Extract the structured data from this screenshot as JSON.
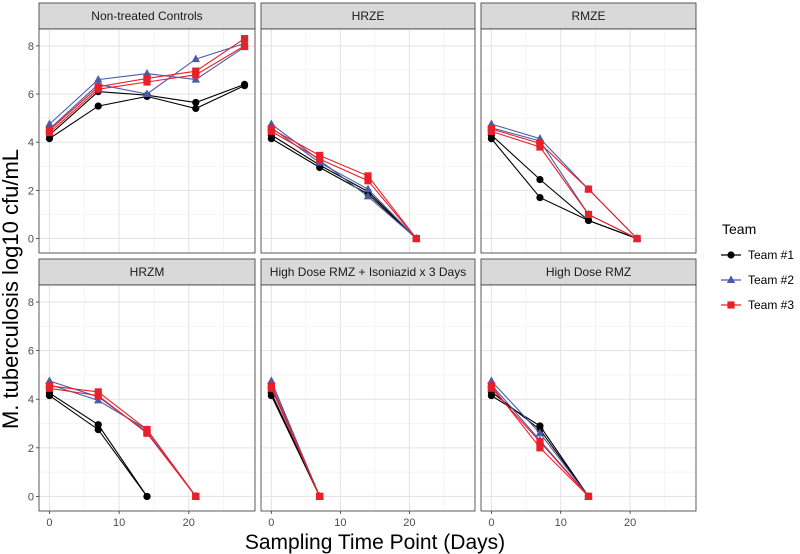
{
  "chart_data": {
    "type": "line",
    "xlabel": "Sampling Time Point (Days)",
    "ylabel": "M. tuberculosis log10 cfu/mL",
    "xlim": [
      -1.5,
      29.5
    ],
    "ylim": [
      -0.6,
      8.7
    ],
    "xticks": [
      0,
      10,
      20
    ],
    "yticks": [
      0,
      2,
      4,
      6,
      8
    ],
    "grid": true,
    "legend": {
      "title": "Team",
      "position": "right",
      "entries": [
        "Team #1",
        "Team #2",
        "Team #3"
      ]
    },
    "team_colors": {
      "Team #1": "#000000",
      "Team #2": "#4a5ba8",
      "Team #3": "#e8202a"
    },
    "team_markers": {
      "Team #1": "circle",
      "Team #2": "triangle",
      "Team #3": "square"
    },
    "panels": [
      {
        "title": "Non-treated Controls",
        "series": [
          {
            "team": "Team #1",
            "x": [
              0,
              7,
              14,
              21,
              28
            ],
            "y": [
              4.15,
              5.5,
              5.9,
              5.4,
              6.35
            ]
          },
          {
            "team": "Team #1",
            "x": [
              0,
              7,
              14,
              21,
              28
            ],
            "y": [
              4.3,
              6.1,
              5.95,
              5.65,
              6.4
            ]
          },
          {
            "team": "Team #2",
            "x": [
              0,
              7,
              14,
              21,
              28
            ],
            "y": [
              4.75,
              6.6,
              6.85,
              6.6,
              7.95
            ]
          },
          {
            "team": "Team #2",
            "x": [
              0,
              7,
              14,
              21,
              28
            ],
            "y": [
              4.55,
              6.4,
              6.0,
              7.45,
              8.1
            ]
          },
          {
            "team": "Team #3",
            "x": [
              0,
              7,
              14,
              21,
              28
            ],
            "y": [
              4.5,
              6.3,
              6.65,
              6.95,
              8.3
            ]
          },
          {
            "team": "Team #3",
            "x": [
              0,
              7,
              14,
              21,
              28
            ],
            "y": [
              4.4,
              6.2,
              6.5,
              6.8,
              8.0
            ]
          }
        ]
      },
      {
        "title": "HRZE",
        "series": [
          {
            "team": "Team #1",
            "x": [
              0,
              7,
              14,
              21
            ],
            "y": [
              4.15,
              2.95,
              1.85,
              0.0
            ]
          },
          {
            "team": "Team #1",
            "x": [
              0,
              7,
              14,
              21
            ],
            "y": [
              4.3,
              3.05,
              1.95,
              0.0
            ]
          },
          {
            "team": "Team #2",
            "x": [
              0,
              7,
              14,
              21
            ],
            "y": [
              4.75,
              3.25,
              1.75,
              0.0
            ]
          },
          {
            "team": "Team #2",
            "x": [
              0,
              7,
              14,
              21
            ],
            "y": [
              4.6,
              3.15,
              2.05,
              0.0
            ]
          },
          {
            "team": "Team #3",
            "x": [
              0,
              7,
              14,
              21
            ],
            "y": [
              4.55,
              3.45,
              2.6,
              0.0
            ]
          },
          {
            "team": "Team #3",
            "x": [
              0,
              7,
              14,
              21
            ],
            "y": [
              4.45,
              3.3,
              2.4,
              0.0
            ]
          }
        ]
      },
      {
        "title": "RMZE",
        "series": [
          {
            "team": "Team #1",
            "x": [
              0,
              7,
              14,
              21
            ],
            "y": [
              4.15,
              1.7,
              0.75,
              0.0
            ]
          },
          {
            "team": "Team #1",
            "x": [
              0,
              7,
              14,
              21
            ],
            "y": [
              4.3,
              2.45,
              0.75,
              0.0
            ]
          },
          {
            "team": "Team #2",
            "x": [
              0,
              7,
              14,
              21
            ],
            "y": [
              4.75,
              4.15,
              2.05,
              0.0
            ]
          },
          {
            "team": "Team #2",
            "x": [
              0,
              7,
              14,
              21
            ],
            "y": [
              4.6,
              4.05,
              1.0,
              0.0
            ]
          },
          {
            "team": "Team #3",
            "x": [
              0,
              7,
              14,
              21
            ],
            "y": [
              4.55,
              3.95,
              2.05,
              0.0
            ]
          },
          {
            "team": "Team #3",
            "x": [
              0,
              7,
              14,
              21
            ],
            "y": [
              4.45,
              3.8,
              1.0,
              0.0
            ]
          }
        ]
      },
      {
        "title": "HRZM",
        "series": [
          {
            "team": "Team #1",
            "x": [
              0,
              7,
              14
            ],
            "y": [
              4.15,
              2.75,
              0.0
            ]
          },
          {
            "team": "Team #1",
            "x": [
              0,
              7,
              14
            ],
            "y": [
              4.25,
              2.95,
              0.0
            ]
          },
          {
            "team": "Team #2",
            "x": [
              0,
              7,
              14,
              21
            ],
            "y": [
              4.75,
              4.1,
              2.65,
              0.0
            ]
          },
          {
            "team": "Team #2",
            "x": [
              0,
              7,
              14,
              21
            ],
            "y": [
              4.6,
              3.95,
              2.75,
              0.0
            ]
          },
          {
            "team": "Team #3",
            "x": [
              0,
              7,
              14,
              21
            ],
            "y": [
              4.55,
              4.3,
              2.75,
              0.0
            ]
          },
          {
            "team": "Team #3",
            "x": [
              0,
              7,
              14,
              21
            ],
            "y": [
              4.45,
              4.15,
              2.6,
              0.0
            ]
          }
        ]
      },
      {
        "title": "High Dose RMZ + Isoniazid x 3 Days",
        "series": [
          {
            "team": "Team #1",
            "x": [
              0,
              7
            ],
            "y": [
              4.15,
              0.0
            ]
          },
          {
            "team": "Team #1",
            "x": [
              0,
              7
            ],
            "y": [
              4.25,
              0.0
            ]
          },
          {
            "team": "Team #2",
            "x": [
              0,
              7
            ],
            "y": [
              4.75,
              0.0
            ]
          },
          {
            "team": "Team #2",
            "x": [
              0,
              7
            ],
            "y": [
              4.6,
              0.0
            ]
          },
          {
            "team": "Team #3",
            "x": [
              0,
              7
            ],
            "y": [
              4.55,
              0.0
            ]
          },
          {
            "team": "Team #3",
            "x": [
              0,
              7
            ],
            "y": [
              4.45,
              0.0
            ]
          }
        ]
      },
      {
        "title": "High Dose RMZ",
        "series": [
          {
            "team": "Team #1",
            "x": [
              0,
              7,
              14
            ],
            "y": [
              4.15,
              2.9,
              0.0
            ]
          },
          {
            "team": "Team #1",
            "x": [
              0,
              7,
              14
            ],
            "y": [
              4.3,
              2.75,
              0.0
            ]
          },
          {
            "team": "Team #2",
            "x": [
              0,
              7,
              14
            ],
            "y": [
              4.75,
              2.6,
              0.0
            ]
          },
          {
            "team": "Team #2",
            "x": [
              0,
              7,
              14
            ],
            "y": [
              4.6,
              2.3,
              0.0
            ]
          },
          {
            "team": "Team #3",
            "x": [
              0,
              7,
              14
            ],
            "y": [
              4.55,
              2.0,
              0.0
            ]
          },
          {
            "team": "Team #3",
            "x": [
              0,
              7,
              14
            ],
            "y": [
              4.45,
              2.25,
              0.0
            ]
          }
        ]
      }
    ]
  }
}
